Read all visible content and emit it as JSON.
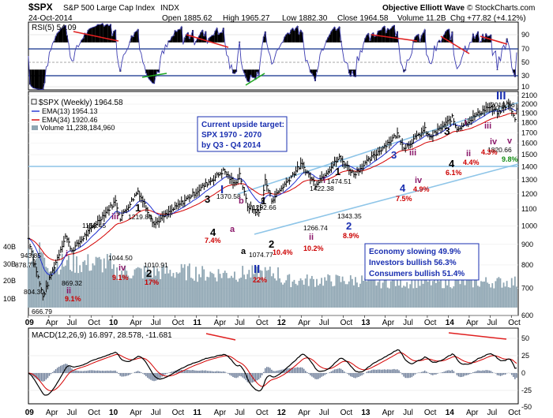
{
  "header": {
    "symbol": "$SPX",
    "name": "S&P 500 Large Cap Index",
    "exchange": "INDX",
    "date": "24-Oct-2014",
    "open": "Open 1885.62",
    "high": "High 1965.27",
    "low": "Low 1882.30",
    "close": "Close 1964.58",
    "volume": "Volume 11.2B",
    "change": "Chg +77.82 (+4.12%)",
    "brand": "Objective Elliott Wave",
    "copyright": "© StockCharts.com"
  },
  "colors": {
    "price": "#000000",
    "ema13": "#1f2fd0",
    "ema34": "#d40000",
    "volume": "#8fa6b3",
    "channel": "#8ec5e8",
    "rsi": "#3b3bb0",
    "macd_signal": "#d40000",
    "annotation_red": "#cc0000",
    "wave_blue": "#1a2fb0",
    "wave_purple": "#8b1a6b",
    "divergence": "#e02020",
    "positive_divergence": "#21a821"
  },
  "rsi_panel": {
    "label": "RSI(5) 54.09",
    "ticks": [
      "90",
      "70",
      "50",
      "30",
      "10"
    ]
  },
  "price_panel": {
    "legend": {
      "title": "$SPX (Weekly) 1964.58",
      "ema13": "EMA(13) 1954.13",
      "ema34": "EMA(34) 1920.46",
      "volume": "Volume 11,238,184,960"
    },
    "yticks": [
      "2100",
      "2000",
      "1900",
      "1800",
      "1700",
      "1600",
      "1500",
      "1400",
      "1300",
      "1200",
      "1100",
      "1000",
      "900",
      "800",
      "700",
      "600"
    ],
    "vol_ticks": [
      "40B",
      "30B",
      "20B",
      "10B"
    ],
    "target_box": [
      "Current upside target:",
      "SPX 1970 - 2070",
      "by Q3 - Q4 2014"
    ],
    "sentiment_box": [
      "Economy slowing 49.9%",
      "Investors bullish 56.3%",
      "Consumers bullish 51.4%"
    ],
    "price_labels": [
      {
        "text": "943.85"
      },
      {
        "text": "878.77"
      },
      {
        "text": "804.30"
      },
      {
        "text": "666.79"
      },
      {
        "text": "869.32"
      },
      {
        "text": "1150.45"
      },
      {
        "text": "1219.80"
      },
      {
        "text": "1044.50"
      },
      {
        "text": "1010.91"
      },
      {
        "text": "1370.58"
      },
      {
        "text": "1292.66"
      },
      {
        "text": "1074.77"
      },
      {
        "text": "1422.38"
      },
      {
        "text": "1266.74"
      },
      {
        "text": "1474.51"
      },
      {
        "text": "1343.35"
      },
      {
        "text": "2019.26"
      },
      {
        "text": "1820.66"
      }
    ],
    "waves": [
      {
        "text": "i"
      },
      {
        "text": "ii"
      },
      {
        "text": "iii"
      },
      {
        "text": "1"
      },
      {
        "text": "iv"
      },
      {
        "text": "2"
      },
      {
        "text": "3"
      },
      {
        "text": "I"
      },
      {
        "text": "b"
      },
      {
        "text": "4"
      },
      {
        "text": "a"
      },
      {
        "text": "1"
      },
      {
        "text": "a"
      },
      {
        "text": "2"
      },
      {
        "text": "II"
      },
      {
        "text": "i"
      },
      {
        "text": "ii"
      },
      {
        "text": "1"
      },
      {
        "text": "2"
      },
      {
        "text": "3"
      },
      {
        "text": "iii"
      },
      {
        "text": "4"
      },
      {
        "text": "iv"
      },
      {
        "text": "3"
      },
      {
        "text": "i"
      },
      {
        "text": "ii"
      },
      {
        "text": "4"
      },
      {
        "text": "iii"
      },
      {
        "text": "iv"
      },
      {
        "text": "III"
      },
      {
        "text": "v"
      }
    ],
    "percents": [
      {
        "text": "9.1%"
      },
      {
        "text": "9.1%"
      },
      {
        "text": "17%"
      },
      {
        "text": "7.4%"
      },
      {
        "text": "22%"
      },
      {
        "text": "10.4%"
      },
      {
        "text": "10.2%"
      },
      {
        "text": "8.9%"
      },
      {
        "text": "7.5%"
      },
      {
        "text": "4.9%"
      },
      {
        "text": "6.1%"
      },
      {
        "text": "4.4%"
      },
      {
        "text": "4.3%"
      },
      {
        "text": "9.8%"
      }
    ]
  },
  "macd_panel": {
    "label": "MACD(12,26,9) 16.897, 28.578, -11.681",
    "ticks": [
      "50",
      "25",
      "0",
      "-25",
      "-50"
    ]
  },
  "x_axis": {
    "labels": [
      "09",
      "Apr",
      "Jul",
      "Oct",
      "10",
      "Apr",
      "Jul",
      "Oct",
      "11",
      "Apr",
      "Jul",
      "Oct",
      "12",
      "Apr",
      "Jul",
      "Oct",
      "13",
      "Apr",
      "Jul",
      "Oct",
      "14",
      "Apr",
      "Jul",
      "Oct"
    ]
  },
  "chart_data": {
    "type": "line",
    "title": "$SPX S&P 500 Large Cap Index INDX",
    "subtitle": "Weekly",
    "scale": "log",
    "ylim": [
      600,
      2100
    ],
    "series": [
      {
        "name": "$SPX (Weekly)",
        "points": [
          [
            "2009-01-02",
            931
          ],
          [
            "2009-03-06",
            667
          ],
          [
            "2009-06-12",
            944
          ],
          [
            "2009-07-10",
            869
          ],
          [
            "2010-01-15",
            1150
          ],
          [
            "2010-02-05",
            1045
          ],
          [
            "2010-04-23",
            1220
          ],
          [
            "2010-07-02",
            1011
          ],
          [
            "2011-05-01",
            1371
          ],
          [
            "2011-06-17",
            1267
          ],
          [
            "2011-07-08",
            1344
          ],
          [
            "2011-08-12",
            1120
          ],
          [
            "2011-10-03",
            1075
          ],
          [
            "2011-10-28",
            1293
          ],
          [
            "2011-11-25",
            1158
          ],
          [
            "2012-04-02",
            1422
          ],
          [
            "2012-06-01",
            1267
          ],
          [
            "2012-09-14",
            1475
          ],
          [
            "2012-11-16",
            1343
          ],
          [
            "2013-05-24",
            1687
          ],
          [
            "2013-06-24",
            1560
          ],
          [
            "2013-09-20",
            1730
          ],
          [
            "2013-10-11",
            1650
          ],
          [
            "2014-01-17",
            1850
          ],
          [
            "2014-02-07",
            1737
          ],
          [
            "2014-06-20",
            1968
          ],
          [
            "2014-08-08",
            1905
          ],
          [
            "2014-09-19",
            2019
          ],
          [
            "2014-10-17",
            1821
          ],
          [
            "2014-10-24",
            1965
          ]
        ]
      },
      {
        "name": "EMA(13)",
        "last": 1954.13
      },
      {
        "name": "EMA(34)",
        "last": 1920.46
      }
    ],
    "volume_last": 11238184960,
    "rsi_last": 54.09,
    "macd_last": [
      16.897,
      28.578,
      -11.681
    ]
  }
}
